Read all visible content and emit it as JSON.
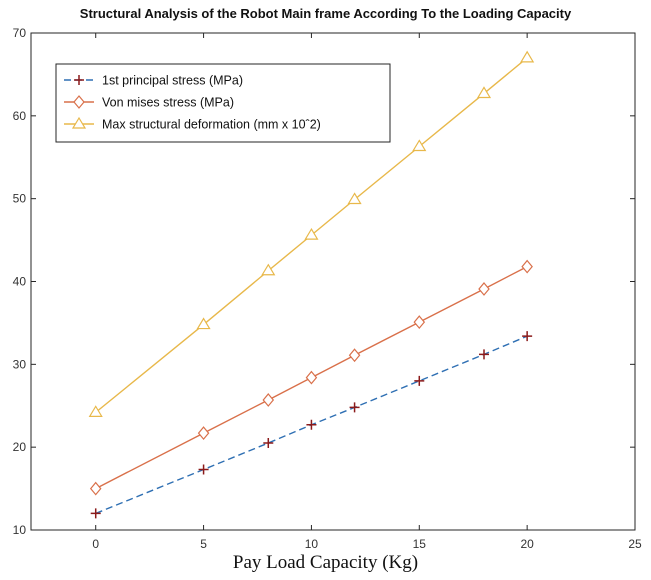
{
  "chart_data": {
    "type": "line",
    "title": "Structural Analysis of the Robot Main frame According To the Loading Capacity",
    "xlabel": "Pay Load Capacity (Kg)",
    "ylabel": "",
    "xlim": [
      -3,
      25
    ],
    "ylim": [
      10,
      70
    ],
    "xticks": [
      0,
      5,
      10,
      15,
      20,
      25
    ],
    "yticks": [
      10,
      20,
      30,
      40,
      50,
      60,
      70
    ],
    "grid": false,
    "legend_position": "top-left",
    "x": [
      0,
      5,
      8,
      10,
      12,
      15,
      18,
      20
    ],
    "series": [
      {
        "name": "1st principal stress (MPa)",
        "values": [
          12.0,
          17.3,
          20.5,
          22.7,
          24.8,
          28.0,
          31.2,
          33.4
        ],
        "color": "#2e6fb3",
        "marker": "plus",
        "marker_color": "#8b1a1a",
        "line_style": "dashed"
      },
      {
        "name": "Von mises stress (MPa)",
        "values": [
          15.0,
          21.7,
          25.7,
          28.4,
          31.1,
          35.1,
          39.1,
          41.8
        ],
        "color": "#d9704a",
        "marker": "diamond",
        "marker_color": "#d9704a",
        "line_style": "solid"
      },
      {
        "name": "Max structural deformation (mm x 10ˆ2)",
        "values": [
          24.2,
          34.8,
          41.3,
          45.6,
          49.9,
          56.3,
          62.7,
          67.0
        ],
        "color": "#e8b84a",
        "marker": "triangle",
        "marker_color": "#e8b84a",
        "line_style": "solid"
      }
    ]
  }
}
